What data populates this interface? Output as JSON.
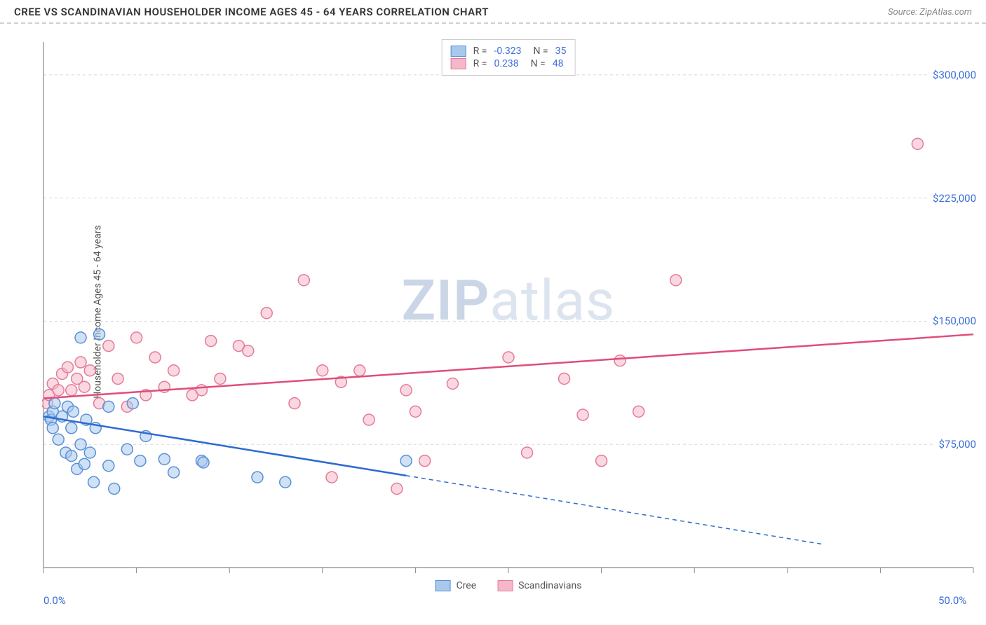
{
  "header": {
    "title": "CREE VS SCANDINAVIAN HOUSEHOLDER INCOME AGES 45 - 64 YEARS CORRELATION CHART",
    "source": "Source: ZipAtlas.com"
  },
  "watermark": {
    "zip": "ZIP",
    "atlas": "atlas"
  },
  "chart": {
    "type": "scatter",
    "background_color": "#ffffff",
    "grid_color": "#d8d8d8",
    "axis_color": "#888888",
    "tick_color": "#888888",
    "ylabel": "Householder Income Ages 45 - 64 years",
    "label_fontsize": 14,
    "label_color": "#555555",
    "value_color": "#3b6fd8",
    "xlim": [
      0,
      50
    ],
    "ylim": [
      0,
      320000
    ],
    "x_ticks": [
      0,
      5,
      10,
      15,
      20,
      25,
      30,
      35,
      40,
      45,
      50
    ],
    "x_tick_labels": {
      "0": "0.0%",
      "50": "50.0%"
    },
    "y_grid": [
      75000,
      150000,
      225000,
      300000
    ],
    "y_tick_labels": {
      "75000": "$75,000",
      "150000": "$150,000",
      "225000": "$225,000",
      "300000": "$300,000"
    },
    "marker_radius": 8,
    "marker_stroke_width": 1.5,
    "series": [
      {
        "name": "Cree",
        "fill": "#a8c8ec",
        "stroke": "#5a8fd6",
        "fill_opacity": 0.55,
        "R": "-0.323",
        "N": "35",
        "points": [
          [
            0.3,
            92000
          ],
          [
            0.4,
            90000
          ],
          [
            0.5,
            95000
          ],
          [
            0.5,
            85000
          ],
          [
            0.6,
            100000
          ],
          [
            0.8,
            78000
          ],
          [
            1.0,
            92000
          ],
          [
            1.2,
            70000
          ],
          [
            1.3,
            98000
          ],
          [
            1.5,
            68000
          ],
          [
            1.5,
            85000
          ],
          [
            1.6,
            95000
          ],
          [
            1.8,
            60000
          ],
          [
            2.0,
            140000
          ],
          [
            2.0,
            75000
          ],
          [
            2.2,
            63000
          ],
          [
            2.3,
            90000
          ],
          [
            2.5,
            70000
          ],
          [
            2.7,
            52000
          ],
          [
            2.8,
            85000
          ],
          [
            3.0,
            142000
          ],
          [
            3.5,
            62000
          ],
          [
            3.5,
            98000
          ],
          [
            3.8,
            48000
          ],
          [
            4.5,
            72000
          ],
          [
            4.8,
            100000
          ],
          [
            5.2,
            65000
          ],
          [
            5.5,
            80000
          ],
          [
            6.5,
            66000
          ],
          [
            7.0,
            58000
          ],
          [
            8.5,
            65000
          ],
          [
            8.6,
            64000
          ],
          [
            11.5,
            55000
          ],
          [
            13.0,
            52000
          ],
          [
            19.5,
            65000
          ]
        ],
        "regression": {
          "x1": 0,
          "y1": 92000,
          "x2": 19.5,
          "y2": 56000
        },
        "extrapolation": {
          "x1": 19.5,
          "y1": 56000,
          "x2": 42,
          "y2": 14000
        },
        "line_color": "#2d6bd0",
        "line_width": 2.5,
        "dash": "6,5"
      },
      {
        "name": "Scandinavians",
        "fill": "#f5b8c8",
        "stroke": "#e47a98",
        "fill_opacity": 0.55,
        "R": "0.238",
        "N": "48",
        "points": [
          [
            0.2,
            100000
          ],
          [
            0.3,
            105000
          ],
          [
            0.5,
            112000
          ],
          [
            0.8,
            108000
          ],
          [
            1.0,
            118000
          ],
          [
            1.3,
            122000
          ],
          [
            1.5,
            108000
          ],
          [
            1.8,
            115000
          ],
          [
            2.0,
            125000
          ],
          [
            2.2,
            110000
          ],
          [
            2.5,
            120000
          ],
          [
            3.0,
            100000
          ],
          [
            3.5,
            135000
          ],
          [
            4.0,
            115000
          ],
          [
            4.5,
            98000
          ],
          [
            5.0,
            140000
          ],
          [
            5.5,
            105000
          ],
          [
            6.0,
            128000
          ],
          [
            6.5,
            110000
          ],
          [
            7.0,
            120000
          ],
          [
            8.0,
            105000
          ],
          [
            8.5,
            108000
          ],
          [
            9.0,
            138000
          ],
          [
            9.5,
            115000
          ],
          [
            10.5,
            135000
          ],
          [
            11.0,
            132000
          ],
          [
            12.0,
            155000
          ],
          [
            13.5,
            100000
          ],
          [
            14.0,
            175000
          ],
          [
            15.0,
            120000
          ],
          [
            15.5,
            55000
          ],
          [
            16.0,
            113000
          ],
          [
            17.0,
            120000
          ],
          [
            17.5,
            90000
          ],
          [
            19.0,
            48000
          ],
          [
            19.5,
            108000
          ],
          [
            20.0,
            95000
          ],
          [
            20.5,
            65000
          ],
          [
            22.0,
            112000
          ],
          [
            25.0,
            128000
          ],
          [
            26.0,
            70000
          ],
          [
            28.0,
            115000
          ],
          [
            29.0,
            93000
          ],
          [
            30.0,
            65000
          ],
          [
            31.0,
            126000
          ],
          [
            32.0,
            95000
          ],
          [
            34.0,
            175000
          ],
          [
            47.0,
            258000
          ]
        ],
        "regression": {
          "x1": 0,
          "y1": 103000,
          "x2": 50,
          "y2": 142000
        },
        "line_color": "#e04d78",
        "line_width": 2.5
      }
    ]
  },
  "legend_bottom": [
    {
      "name": "Cree",
      "fill": "#a8c8ec",
      "stroke": "#5a8fd6"
    },
    {
      "name": "Scandinavians",
      "fill": "#f5b8c8",
      "stroke": "#e47a98"
    }
  ]
}
